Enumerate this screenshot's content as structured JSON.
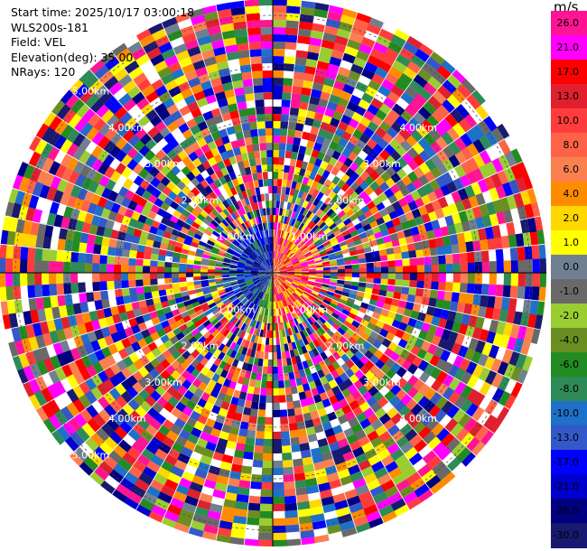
{
  "header": {
    "start_time": "Start time: 2025/10/17 03:00:18",
    "station": "WLS200s-181",
    "field": "Field: VEL",
    "elevation": "Elevation(deg): 35.00",
    "nrays": "NRays: 120"
  },
  "colorbar": {
    "unit": "m/s",
    "labels": [
      "26.0",
      "21.0",
      "17.0",
      "13.0",
      "10.0",
      "8.0",
      "6.0",
      "4.0",
      "2.0",
      "1.0",
      "0.0",
      "-1.0",
      "-2.0",
      "-4.0",
      "-6.0",
      "-8.0",
      "-10.0",
      "-13.0",
      "-17.0",
      "-21.0",
      "-26.0",
      "-30.0"
    ],
    "colors": [
      "#ff1493",
      "#ff00ff",
      "#ff0000",
      "#e0202f",
      "#ff3c3c",
      "#ff6347",
      "#fa8050",
      "#ff8c00",
      "#ffd700",
      "#ffff00",
      "#708090",
      "#696969",
      "#9acd32",
      "#6b8e23",
      "#228b22",
      "#2e8b57",
      "#1e70c8",
      "#3358c8",
      "#0000ff",
      "#0000cd",
      "#000080",
      "#191970"
    ]
  },
  "chart_data": {
    "type": "heatmap",
    "title": "",
    "projection": "polar (PPI)",
    "field": "VEL",
    "units": "m/s",
    "n_rays": 120,
    "elevation_deg": 35.0,
    "colorbar_range": [
      -30.0,
      26.0
    ],
    "range_rings": [
      {
        "label": "1.00km",
        "positions": [
          "upper-left",
          "upper-right",
          "lower-left",
          "lower-right"
        ]
      },
      {
        "label": "2.00km",
        "positions": [
          "upper-left",
          "upper-right",
          "lower-left",
          "lower-right"
        ]
      },
      {
        "label": "3.00km",
        "positions": [
          "upper-left",
          "upper-right",
          "lower-left",
          "lower-right"
        ]
      },
      {
        "label": "4.00km",
        "positions": [
          "upper-left",
          "upper-right",
          "lower-left",
          "lower-right"
        ]
      },
      {
        "label": "5.00km",
        "positions": [
          "upper-left",
          "lower-left"
        ]
      }
    ],
    "grid": true
  }
}
